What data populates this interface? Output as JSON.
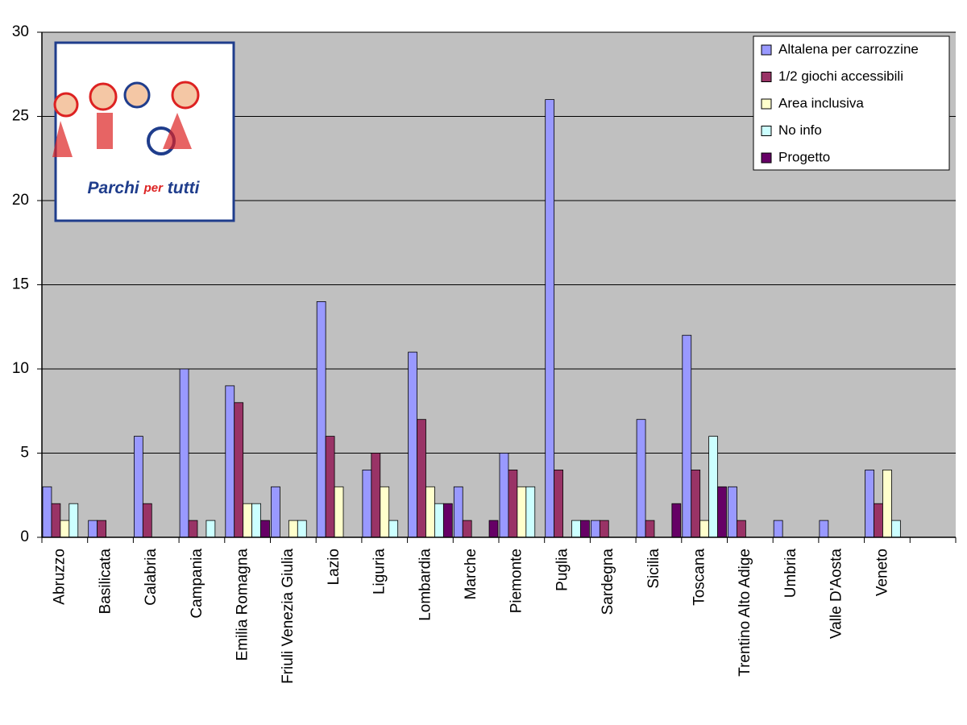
{
  "chart_data": {
    "type": "bar",
    "logo_text": [
      "Parchi",
      "per",
      "tutti"
    ],
    "categories": [
      "Abruzzo",
      "Basilicata",
      "Calabria",
      "Campania",
      "Emilia Romagna",
      "Friuli Venezia Giulia",
      "Lazio",
      "Liguria",
      "Lombardia",
      "Marche",
      "Piemonte",
      "Puglia",
      "Sardegna",
      "Sicilia",
      "Toscana",
      "Trentino Alto Adige",
      "Umbria",
      "Valle D'Aosta",
      "Veneto",
      null
    ],
    "series": [
      {
        "name": "Altalena per carrozzine",
        "color": "#9999ff",
        "values": [
          3,
          1,
          6,
          10,
          9,
          3,
          14,
          4,
          11,
          3,
          5,
          26,
          1,
          7,
          12,
          3,
          1,
          1,
          4,
          null
        ]
      },
      {
        "name": "1/2 giochi accessibili",
        "color": "#993366",
        "values": [
          2,
          1,
          2,
          1,
          8,
          0,
          6,
          5,
          7,
          1,
          4,
          4,
          1,
          1,
          4,
          1,
          0,
          0,
          2,
          null
        ]
      },
      {
        "name": "Area inclusiva",
        "color": "#ffffcc",
        "values": [
          1,
          0,
          0,
          0,
          2,
          1,
          3,
          3,
          3,
          0,
          3,
          0,
          0,
          0,
          1,
          0,
          0,
          0,
          4,
          null
        ]
      },
      {
        "name": "No info",
        "color": "#ccffff",
        "values": [
          2,
          0,
          0,
          1,
          2,
          1,
          0,
          1,
          2,
          0,
          3,
          1,
          0,
          0,
          6,
          0,
          0,
          0,
          1,
          null
        ]
      },
      {
        "name": "Progetto",
        "color": "#660066",
        "values": [
          0,
          0,
          0,
          0,
          1,
          0,
          0,
          0,
          2,
          1,
          0,
          1,
          0,
          2,
          3,
          0,
          0,
          0,
          0,
          null
        ]
      }
    ],
    "ylim": [
      0,
      30
    ],
    "yticks": [
      0,
      5,
      10,
      15,
      20,
      25,
      30
    ],
    "grid": true,
    "legend": "top-right"
  }
}
